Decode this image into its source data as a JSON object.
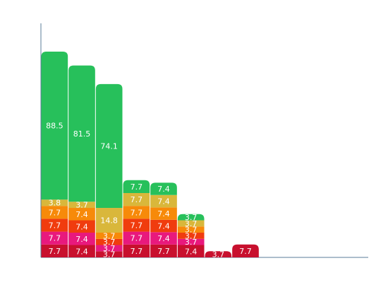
{
  "chart_data": {
    "type": "stacked-bar",
    "categories": [
      null,
      null,
      null,
      null,
      null,
      null,
      null,
      null,
      null,
      null,
      null,
      null
    ],
    "ylim": [
      0,
      140
    ],
    "series": [
      {
        "color": "#c8102e",
        "values": [
          7.7,
          7.4,
          3.7,
          7.7,
          7.7,
          7.4,
          3.7,
          7.7,
          null,
          null,
          null,
          null
        ]
      },
      {
        "color": "#e8197d",
        "values": [
          7.7,
          7.4,
          3.7,
          7.7,
          7.4,
          3.7,
          null,
          null,
          null,
          null,
          null,
          null
        ]
      },
      {
        "color": "#f03c0e",
        "values": [
          7.7,
          7.4,
          3.7,
          7.7,
          7.4,
          3.7,
          null,
          null,
          null,
          null,
          null,
          null
        ]
      },
      {
        "color": "#f78a0a",
        "values": [
          7.7,
          7.4,
          3.7,
          7.7,
          7.4,
          3.7,
          null,
          null,
          null,
          null,
          null,
          null
        ]
      },
      {
        "color": "#d9b73b",
        "values": [
          3.8,
          3.7,
          14.8,
          7.7,
          7.4,
          3.7,
          null,
          null,
          null,
          null,
          null,
          null
        ]
      },
      {
        "color": "#27c05b",
        "values": [
          88.5,
          81.5,
          74.1,
          7.7,
          7.4,
          3.7,
          null,
          null,
          null,
          null,
          null,
          null
        ]
      }
    ]
  }
}
